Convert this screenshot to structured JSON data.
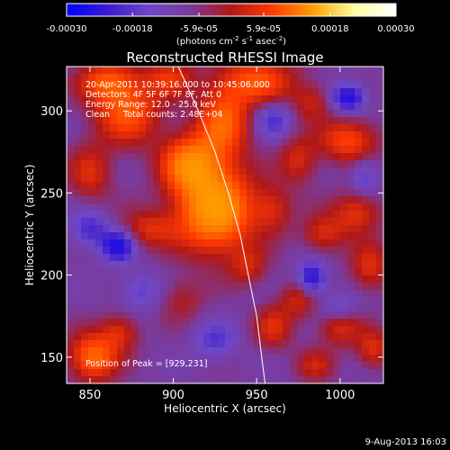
{
  "colors": {
    "background": "#000000",
    "text": "#ffffff",
    "colormap": [
      "#0000ff",
      "#3a1ad0",
      "#6e48c8",
      "#7a3a9a",
      "#b01818",
      "#ff3a00",
      "#ffa000",
      "#ffffa0",
      "#ffffff"
    ]
  },
  "colorbar": {
    "ticks": [
      "-0.00030",
      "-0.00018",
      "-5.9e-05",
      "5.9e-05",
      "0.00018",
      "0.00030"
    ],
    "tick_values": [
      -0.0003,
      -0.00018,
      -5.9e-05,
      5.9e-05,
      0.00018,
      0.0003
    ],
    "range": [
      -0.0003,
      0.0003
    ],
    "units_text": "(photons cm",
    "units_exp1": "-2",
    "units_mid": " s",
    "units_exp2": "-1",
    "units_mid2": " asec",
    "units_exp3": "-2",
    "units_close": ")"
  },
  "chart_data": {
    "type": "heatmap",
    "title": "Reconstructed RHESSI Image",
    "xlabel": "Heliocentric X (arcsec)",
    "ylabel": "Heliocentric Y (arcsec)",
    "xlim": [
      836,
      1026
    ],
    "ylim": [
      134,
      327
    ],
    "x_ticks": [
      850,
      900,
      950,
      1000
    ],
    "y_ticks": [
      150,
      200,
      250,
      300
    ],
    "grid": false,
    "annotations": [
      "20-Apr-2011 10:39:16.000 to 10:45:06.000",
      "Detectors: 4F 5F 6F 7F 8F, Att 0",
      "Energy Range: 12.0 - 25.0 keV",
      "Clean     Total counts: 2.48E+04"
    ],
    "peak_label": "Position of Peak = [929,231]",
    "peak": [
      929,
      231
    ],
    "limb_curve": [
      [
        903,
        327
      ],
      [
        915,
        300
      ],
      [
        925,
        275
      ],
      [
        933,
        250
      ],
      [
        940,
        225
      ],
      [
        945,
        200
      ],
      [
        950,
        175
      ],
      [
        953,
        150
      ],
      [
        955,
        134
      ]
    ],
    "sources": [
      {
        "x": 925,
        "y": 240,
        "amp": 1.55,
        "sx": 16,
        "sy": 18
      },
      {
        "x": 910,
        "y": 268,
        "amp": 1.15,
        "sx": 12,
        "sy": 12
      },
      {
        "x": 930,
        "y": 293,
        "amp": 0.95,
        "sx": 11,
        "sy": 15
      },
      {
        "x": 950,
        "y": 318,
        "amp": 0.85,
        "sx": 16,
        "sy": 10
      },
      {
        "x": 872,
        "y": 300,
        "amp": 0.9,
        "sx": 14,
        "sy": 14
      },
      {
        "x": 860,
        "y": 318,
        "amp": 0.75,
        "sx": 12,
        "sy": 8
      },
      {
        "x": 898,
        "y": 320,
        "amp": 0.6,
        "sx": 10,
        "sy": 8
      },
      {
        "x": 850,
        "y": 262,
        "amp": 0.55,
        "sx": 9,
        "sy": 12
      },
      {
        "x": 885,
        "y": 228,
        "amp": 0.55,
        "sx": 12,
        "sy": 8
      },
      {
        "x": 852,
        "y": 150,
        "amp": 1.05,
        "sx": 10,
        "sy": 10
      },
      {
        "x": 868,
        "y": 165,
        "amp": 0.55,
        "sx": 8,
        "sy": 8
      },
      {
        "x": 1005,
        "y": 282,
        "amp": 0.8,
        "sx": 12,
        "sy": 9
      },
      {
        "x": 1010,
        "y": 238,
        "amp": 0.65,
        "sx": 10,
        "sy": 9
      },
      {
        "x": 975,
        "y": 270,
        "amp": 0.55,
        "sx": 8,
        "sy": 10
      },
      {
        "x": 990,
        "y": 225,
        "amp": 0.55,
        "sx": 9,
        "sy": 8
      },
      {
        "x": 960,
        "y": 240,
        "amp": 0.5,
        "sx": 8,
        "sy": 10
      },
      {
        "x": 1018,
        "y": 205,
        "amp": 0.6,
        "sx": 8,
        "sy": 10
      },
      {
        "x": 1000,
        "y": 168,
        "amp": 0.55,
        "sx": 9,
        "sy": 8
      },
      {
        "x": 975,
        "y": 185,
        "amp": 0.5,
        "sx": 8,
        "sy": 8
      },
      {
        "x": 960,
        "y": 168,
        "amp": 0.55,
        "sx": 8,
        "sy": 9
      },
      {
        "x": 1020,
        "y": 155,
        "amp": 0.6,
        "sx": 7,
        "sy": 8
      },
      {
        "x": 985,
        "y": 145,
        "amp": 0.45,
        "sx": 8,
        "sy": 7
      },
      {
        "x": 905,
        "y": 185,
        "amp": 0.35,
        "sx": 9,
        "sy": 9
      },
      {
        "x": 945,
        "y": 205,
        "amp": 0.45,
        "sx": 8,
        "sy": 8
      },
      {
        "x": 983,
        "y": 305,
        "amp": 0.45,
        "sx": 8,
        "sy": 8
      },
      {
        "x": 867,
        "y": 218,
        "amp": -0.9,
        "sx": 7,
        "sy": 7
      },
      {
        "x": 1005,
        "y": 308,
        "amp": -0.9,
        "sx": 7,
        "sy": 6
      },
      {
        "x": 983,
        "y": 198,
        "amp": -0.85,
        "sx": 6,
        "sy": 7
      },
      {
        "x": 850,
        "y": 228,
        "amp": -0.55,
        "sx": 8,
        "sy": 8
      },
      {
        "x": 960,
        "y": 295,
        "amp": -0.5,
        "sx": 8,
        "sy": 8
      },
      {
        "x": 880,
        "y": 190,
        "amp": -0.4,
        "sx": 9,
        "sy": 8
      },
      {
        "x": 925,
        "y": 160,
        "amp": -0.45,
        "sx": 9,
        "sy": 8
      },
      {
        "x": 1015,
        "y": 260,
        "amp": -0.45,
        "sx": 6,
        "sy": 8
      },
      {
        "x": 1000,
        "y": 180,
        "amp": -0.4,
        "sx": 8,
        "sy": 6
      }
    ]
  },
  "footer": {
    "date": "9-Aug-2013 16:03"
  }
}
